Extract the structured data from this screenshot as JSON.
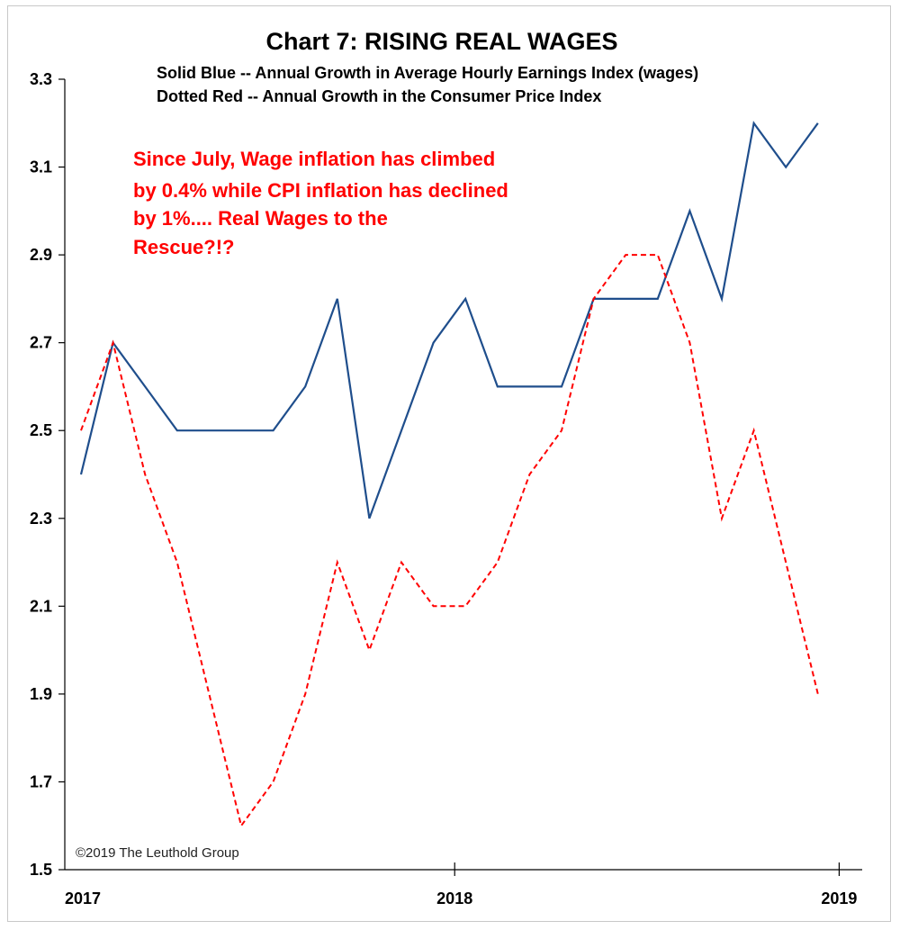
{
  "chart_data": {
    "type": "line",
    "title": "Chart 7: RISING REAL WAGES",
    "subtitle_lines": [
      "Solid Blue -- Annual Growth in Average Hourly Earnings Index (wages)",
      "Dotted Red -- Annual Growth in the Consumer Price Index"
    ],
    "annotation_lines": [
      "Since July, Wage inflation has climbed",
      "by 0.4% while CPI inflation has declined",
      "by 1%.... Real Wages to the",
      "Rescue?!?"
    ],
    "footnote": "©2019 The Leuthold Group",
    "x_tick_labels": [
      "2017",
      "2018",
      "2019"
    ],
    "y_tick_labels": [
      "1.5",
      "1.7",
      "1.9",
      "2.1",
      "2.3",
      "2.5",
      "2.7",
      "2.9",
      "3.1",
      "3.3"
    ],
    "ylim": [
      1.5,
      3.3
    ],
    "ylabel": "",
    "xlabel": "",
    "x": [
      "2017-01",
      "2017-02",
      "2017-03",
      "2017-04",
      "2017-05",
      "2017-06",
      "2017-07",
      "2017-08",
      "2017-09",
      "2017-10",
      "2017-11",
      "2017-12",
      "2018-01",
      "2018-02",
      "2018-03",
      "2018-04",
      "2018-05",
      "2018-06",
      "2018-07",
      "2018-08",
      "2018-09",
      "2018-10",
      "2018-11",
      "2018-12"
    ],
    "series": [
      {
        "style": "solid",
        "color": "#1f4e8c",
        "values": [
          2.4,
          2.7,
          2.6,
          2.5,
          2.5,
          2.5,
          2.5,
          2.6,
          2.8,
          2.3,
          2.5,
          2.7,
          2.8,
          2.6,
          2.6,
          2.6,
          2.8,
          2.8,
          2.8,
          3.0,
          2.8,
          3.2,
          3.1,
          3.2
        ]
      },
      {
        "style": "dashed",
        "color": "#ff0000",
        "values": [
          2.5,
          2.7,
          2.4,
          2.2,
          1.9,
          1.6,
          1.7,
          1.9,
          2.2,
          2.0,
          2.2,
          2.1,
          2.1,
          2.2,
          2.4,
          2.5,
          2.8,
          2.9,
          2.9,
          2.7,
          2.3,
          2.5,
          2.2,
          1.9
        ]
      }
    ],
    "grid": false,
    "legend": "none"
  }
}
